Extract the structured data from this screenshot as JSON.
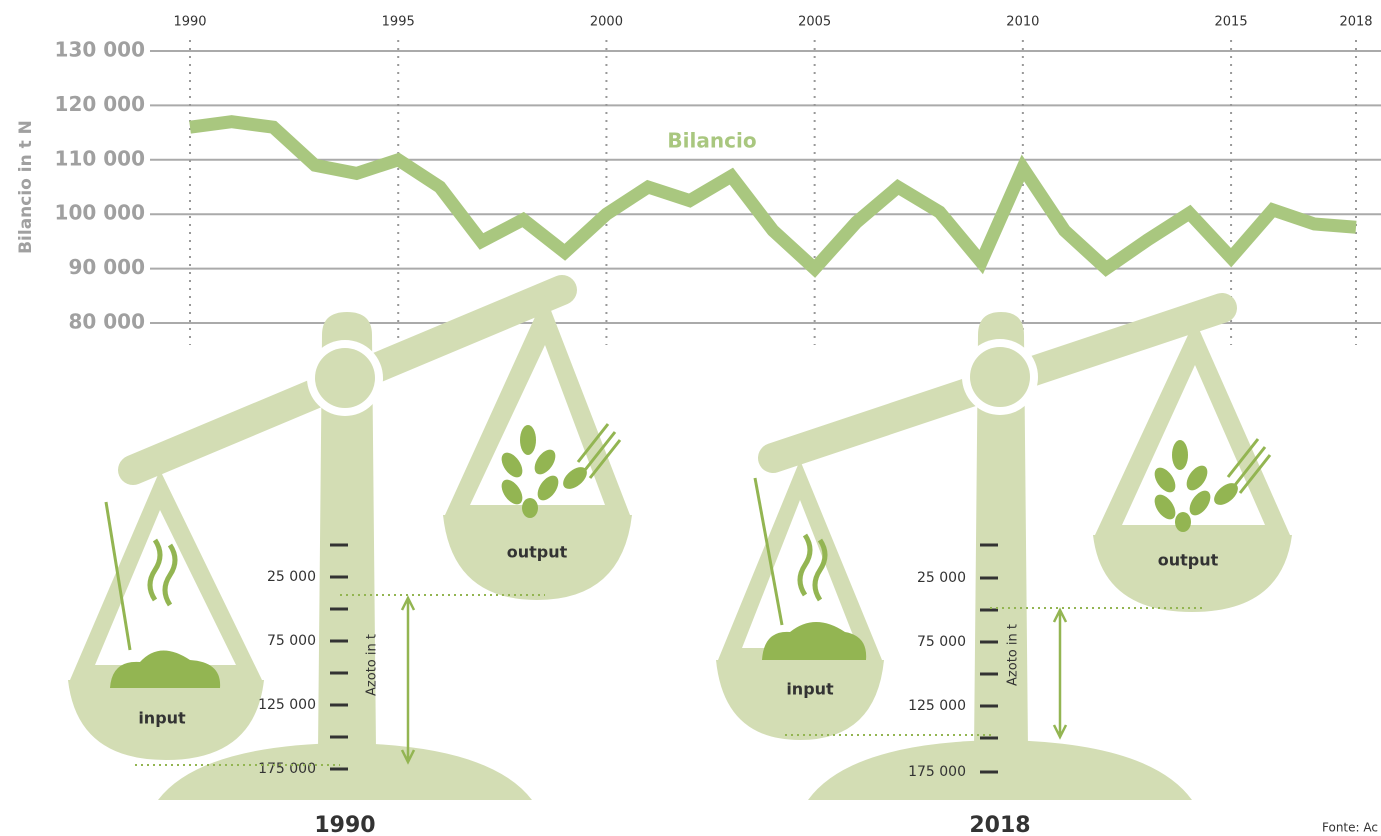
{
  "chart_data": {
    "type": "line",
    "y_label": "Bilancio in t N",
    "x": [
      1990,
      1991,
      1992,
      1993,
      1994,
      1995,
      1996,
      1997,
      1998,
      1999,
      2000,
      2001,
      2002,
      2003,
      2004,
      2005,
      2006,
      2007,
      2008,
      2009,
      2010,
      2011,
      2012,
      2013,
      2014,
      2015,
      2016,
      2017,
      2018
    ],
    "series": [
      {
        "name": "Bilancio",
        "color": "#a9c77f",
        "values": [
          116000,
          117000,
          116000,
          109000,
          107500,
          110000,
          105000,
          95000,
          99000,
          93000,
          100000,
          105000,
          102500,
          107000,
          97000,
          90000,
          98500,
          105000,
          100400,
          91200,
          108500,
          97000,
          90000,
          95300,
          100200,
          92000,
          100800,
          98200,
          97600
        ]
      }
    ],
    "xlim": [
      1990,
      2018
    ],
    "xticks": [
      1990,
      1995,
      2000,
      2005,
      2010,
      2015,
      2018
    ],
    "ylim": [
      80000,
      130000
    ],
    "yticks": [
      {
        "value": 80000,
        "label": "80 000"
      },
      {
        "value": 90000,
        "label": "90 000"
      },
      {
        "value": 100000,
        "label": "100 000"
      },
      {
        "value": 110000,
        "label": "110 000"
      },
      {
        "value": 120000,
        "label": "120 000"
      },
      {
        "value": 130000,
        "label": "130 000"
      }
    ],
    "grid": true
  },
  "scales": [
    {
      "year": "1990",
      "input": "input",
      "output": "output",
      "axis_title": "Azoto in t",
      "ticks": [
        "25 000",
        "75 000",
        "125 000",
        "175 000"
      ]
    },
    {
      "year": "2018",
      "input": "input",
      "output": "output",
      "axis_title": "Azoto in t",
      "ticks": [
        "25 000",
        "75 000",
        "125 000",
        "175 000"
      ]
    }
  ],
  "source": "Fonte: Ac"
}
